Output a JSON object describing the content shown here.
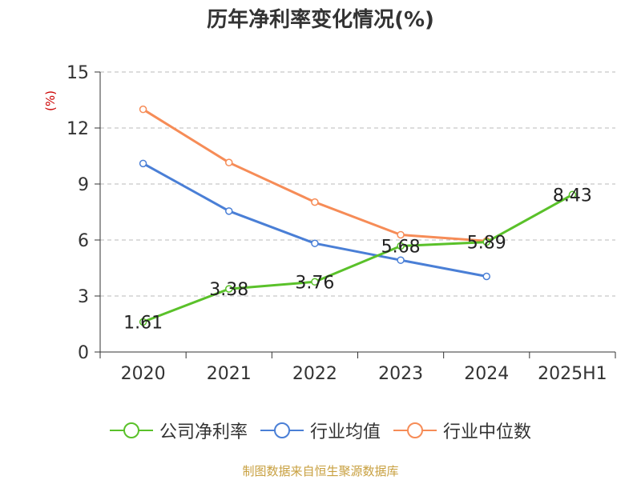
{
  "title": "历年净利率变化情况(%)",
  "source_note": "制图数据来自恒生聚源数据库",
  "chart_data": {
    "type": "line",
    "title": "历年净利率变化情况(%)",
    "ylabel": "(%)",
    "xlabel": "",
    "categories": [
      "2020",
      "2021",
      "2022",
      "2023",
      "2024",
      "2025H1"
    ],
    "ylim": [
      0,
      15
    ],
    "yticks": [
      0,
      3,
      6,
      9,
      12,
      15
    ],
    "grid": true,
    "legend_position": "bottom",
    "series": [
      {
        "name": "公司净利率",
        "color": "#5ac12a",
        "values": [
          1.61,
          3.38,
          3.76,
          5.68,
          5.89,
          8.43
        ],
        "labels": [
          "1.61",
          "3.38",
          "3.76",
          "5.68",
          "5.89",
          "8.43"
        ]
      },
      {
        "name": "行业均值",
        "color": "#4a7fd6",
        "values": [
          10.1,
          7.55,
          5.82,
          4.92,
          4.05,
          null
        ],
        "labels": []
      },
      {
        "name": "行业中位数",
        "color": "#f68c57",
        "values": [
          13.0,
          10.15,
          8.03,
          6.28,
          5.95,
          null
        ],
        "labels": []
      }
    ]
  }
}
